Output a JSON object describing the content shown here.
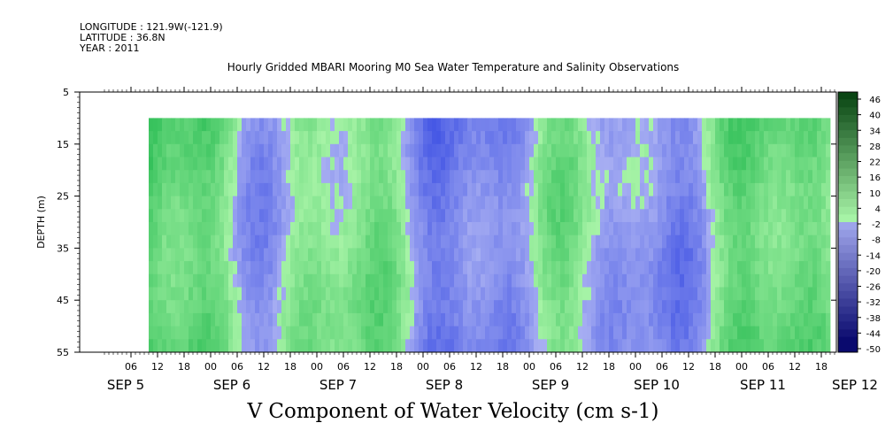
{
  "header": {
    "longitude": "LONGITUDE : 121.9W(-121.9)",
    "latitude": "LATITUDE : 36.8N",
    "year": "YEAR : 2011"
  },
  "chart_data": {
    "type": "heatmap",
    "title": "Hourly Gridded MBARI Mooring M0 Sea Water Temperature and Salinity Observations",
    "xlabel": "",
    "ylabel": "DEPTH (m)",
    "variable_label": "V Component of Water Velocity (cm s-1)",
    "ylim": [
      5,
      55
    ],
    "y_ticks": [
      "5",
      "15",
      "25",
      "35",
      "45",
      "55"
    ],
    "data_depth_range": [
      10,
      55
    ],
    "x_hour_ticks": [
      "06",
      "12",
      "18",
      "00",
      "06",
      "12",
      "18",
      "00",
      "06",
      "12",
      "18",
      "00",
      "06",
      "12",
      "18",
      "00",
      "06",
      "12",
      "18",
      "00",
      "06",
      "12",
      "18",
      "00",
      "06",
      "12",
      "18",
      "00",
      "06",
      "12",
      "18",
      "00"
    ],
    "x_date_labels": [
      "SEP  5",
      "SEP  6",
      "SEP  7",
      "SEP  8",
      "SEP  9",
      "SEP 10",
      "SEP 11",
      "SEP 12"
    ],
    "data_time_range": [
      "SEP 5 10:00",
      "SEP 12 06:00"
    ],
    "colorbar": {
      "labels": [
        "46",
        "40",
        "34",
        "28",
        "22",
        "16",
        "10",
        "4",
        "-2",
        "-8",
        "-14",
        "-20",
        "-26",
        "-32",
        "-38",
        "-44",
        "-50"
      ],
      "range": [
        -50,
        50
      ],
      "negative_color": "#2238e0",
      "positive_color": "#0fb042",
      "near_zero_negative": "#a7aef2",
      "near_zero_positive": "#a6f3a6"
    },
    "series": [
      {
        "values_by_day": [
          {
            "date": "SEP 5",
            "mean": 6
          },
          {
            "date": "SEP 6",
            "mean": 10
          },
          {
            "date": "SEP 7",
            "mean": 2
          },
          {
            "date": "SEP 8",
            "mean": -3
          },
          {
            "date": "SEP 9",
            "mean": -5
          },
          {
            "date": "SEP 10",
            "mean": -2
          },
          {
            "date": "SEP 11",
            "mean": 5
          },
          {
            "date": "SEP 12",
            "mean": 8
          }
        ]
      }
    ]
  }
}
